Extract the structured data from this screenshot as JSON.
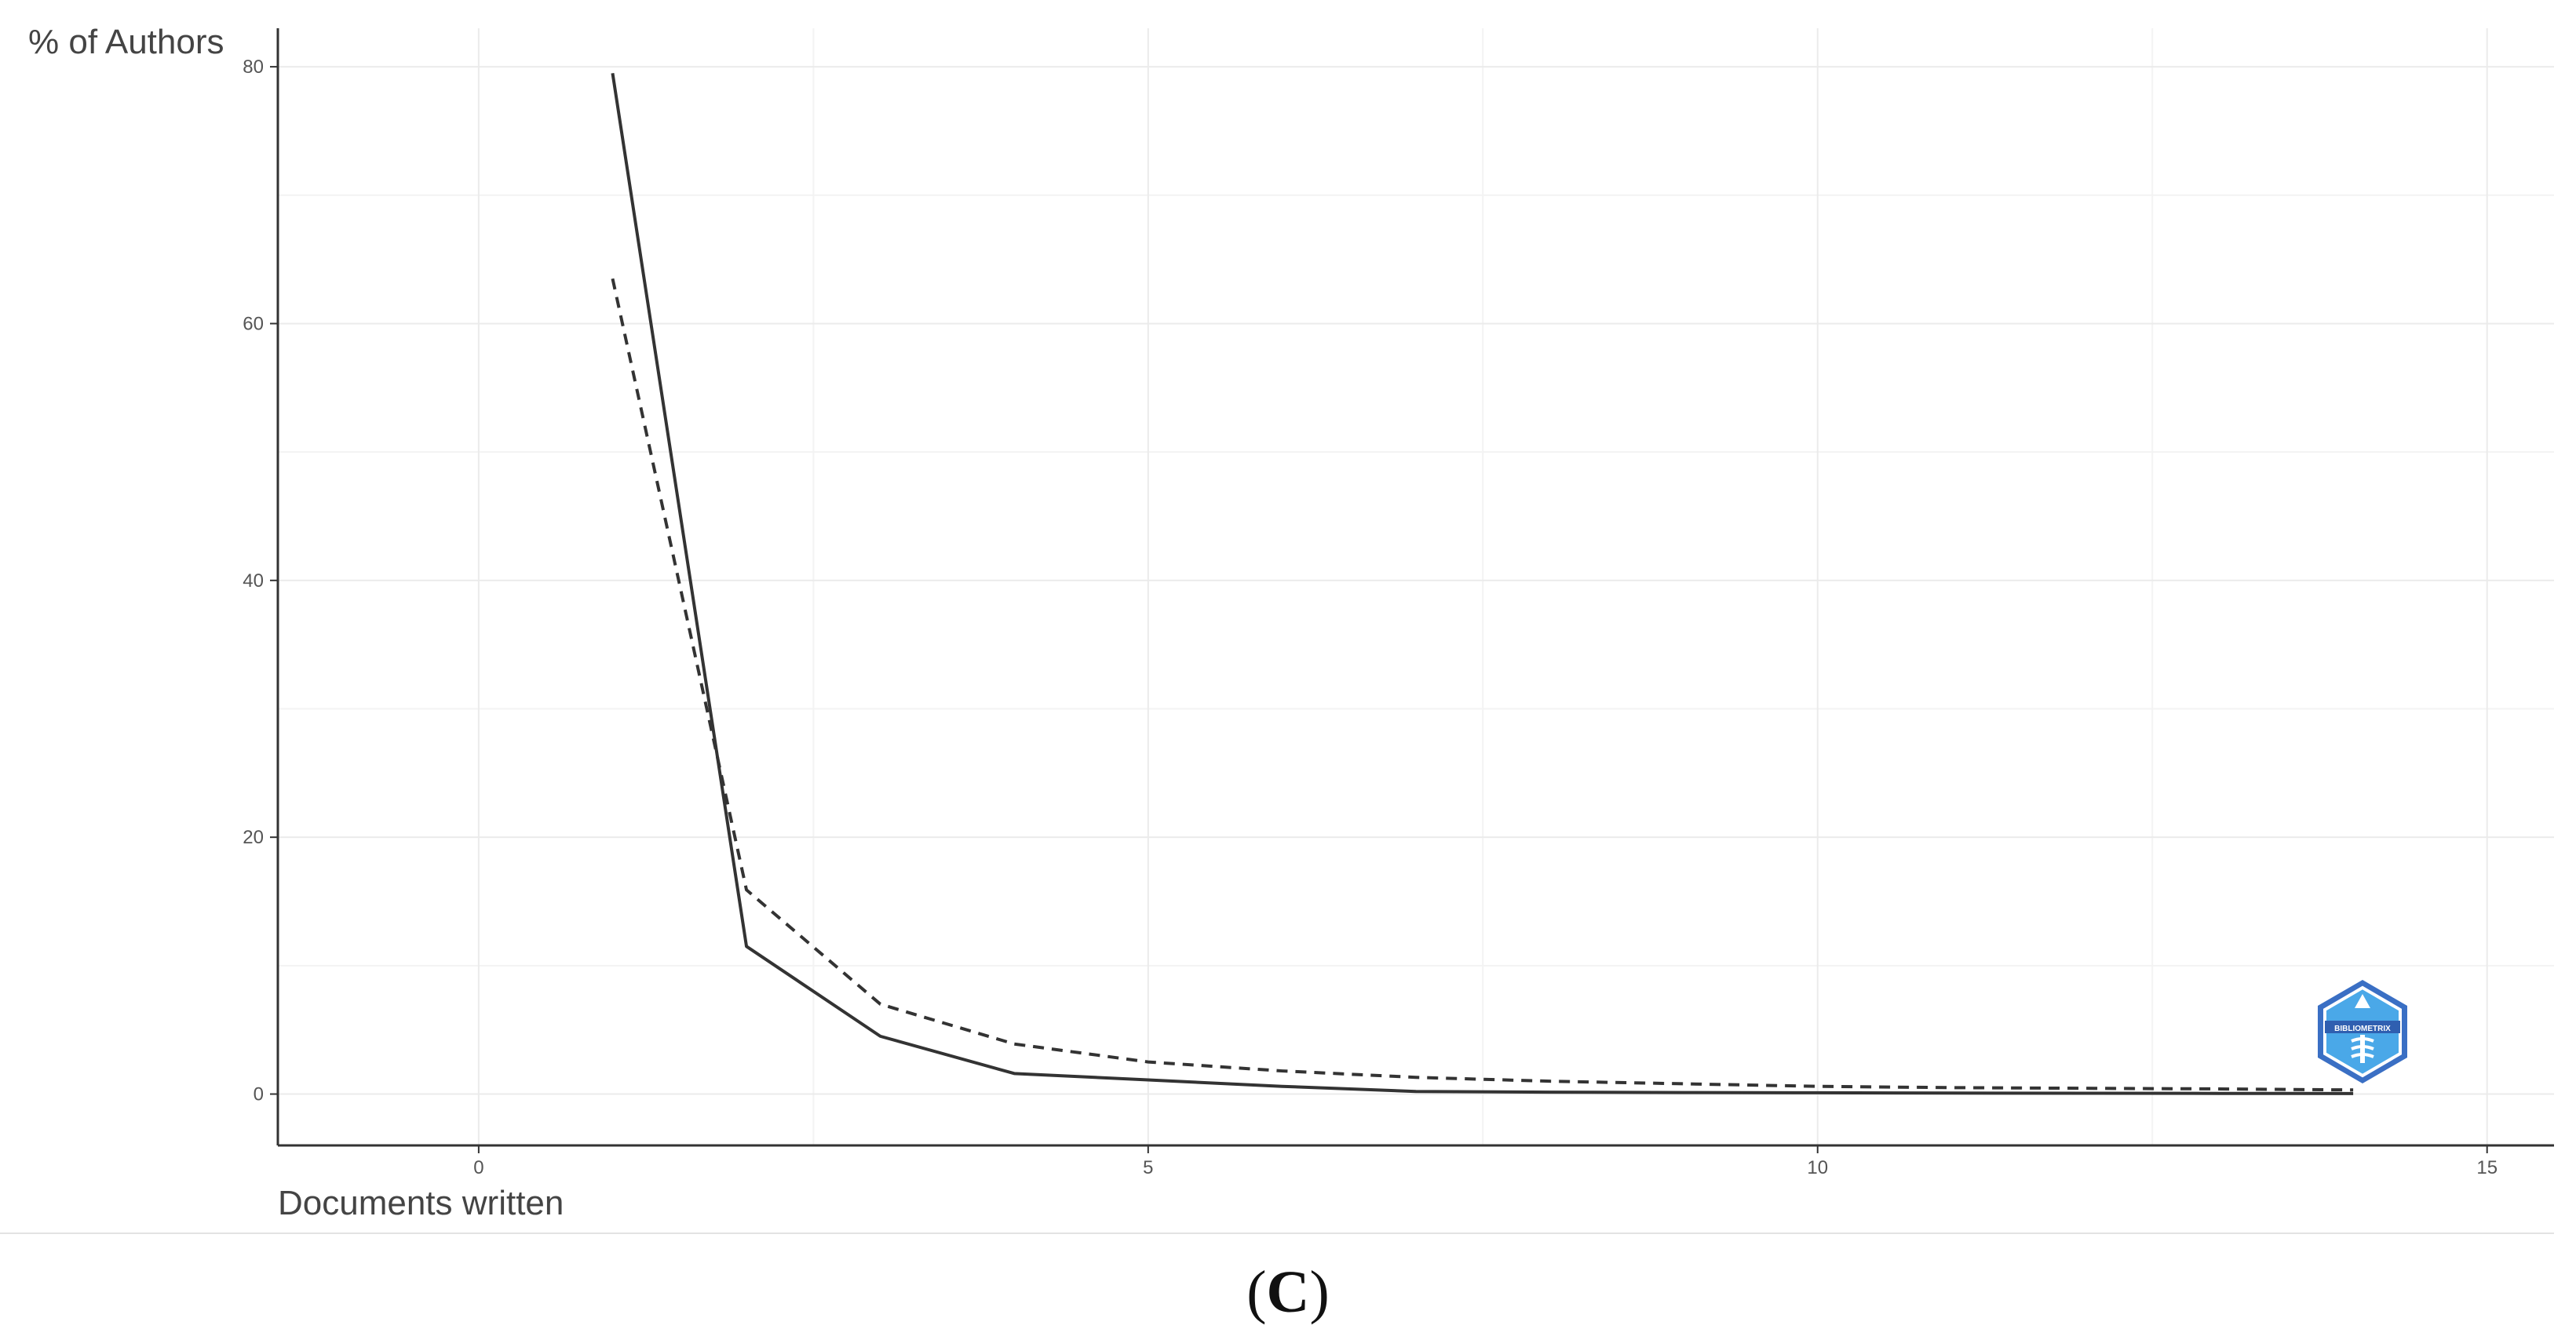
{
  "chart_data": {
    "type": "line",
    "xlabel": "Documents written",
    "ylabel": "% of Authors",
    "xlim": [
      -1.5,
      15.5
    ],
    "ylim": [
      -4,
      83
    ],
    "x_ticks": [
      0,
      5,
      10,
      15
    ],
    "y_ticks": [
      0,
      20,
      40,
      60,
      80
    ],
    "grid": true,
    "series": [
      {
        "style": "solid",
        "color": "#333333",
        "x": [
          1,
          2,
          3,
          4,
          5,
          6,
          7,
          8,
          9,
          10,
          11,
          12,
          13,
          14
        ],
        "y": [
          79.5,
          11.5,
          4.5,
          1.6,
          1.1,
          0.6,
          0.2,
          0.15,
          0.12,
          0.1,
          0.08,
          0.06,
          0.05,
          0.04
        ]
      },
      {
        "style": "dashed",
        "color": "#333333",
        "x": [
          1,
          2,
          3,
          4,
          5,
          6,
          7,
          8,
          9,
          10,
          11,
          12,
          13,
          14
        ],
        "y": [
          63.5,
          15.9,
          7.0,
          3.9,
          2.5,
          1.8,
          1.3,
          1.0,
          0.8,
          0.6,
          0.5,
          0.45,
          0.4,
          0.32
        ]
      }
    ]
  },
  "panel_label": {
    "open": "(",
    "letter": "C",
    "close": ")"
  },
  "watermark": {
    "text": "BIBLIOMETRIX",
    "icon": "bibliometrix-logo-icon",
    "colors": [
      "#3a6fc4",
      "#3fb7e6"
    ]
  }
}
